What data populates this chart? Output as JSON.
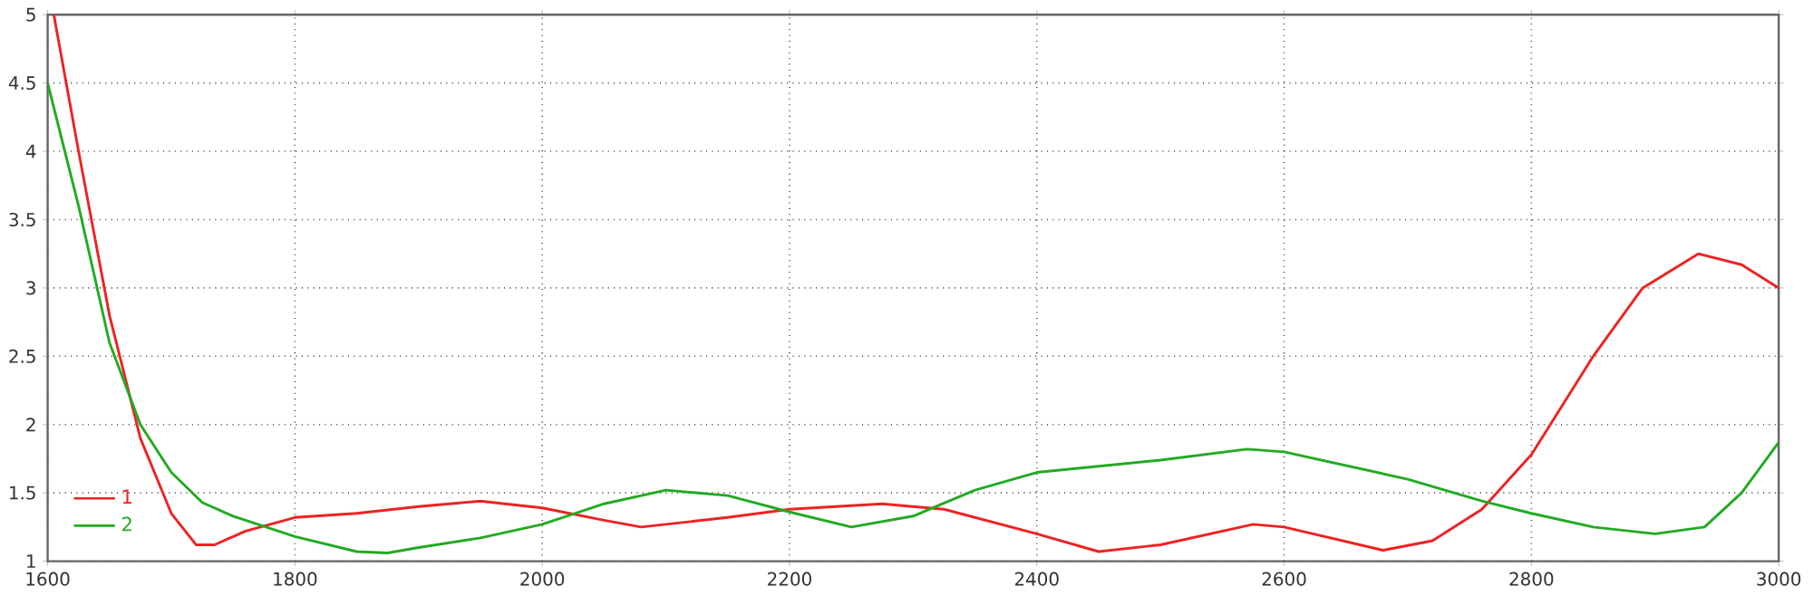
{
  "chart_data": {
    "type": "line",
    "xlim": [
      1600,
      3000
    ],
    "ylim": [
      1,
      5
    ],
    "xticks": [
      1600,
      1800,
      2000,
      2200,
      2400,
      2600,
      2800,
      3000
    ],
    "yticks": [
      1,
      1.5,
      2,
      2.5,
      3,
      3.5,
      4,
      4.5,
      5
    ],
    "grid": true,
    "legend": "bottom left",
    "line_style": "solid",
    "marker": "none",
    "series": [
      {
        "name": "1",
        "color": "#ee2222",
        "x": [
          1605,
          1625,
          1650,
          1675,
          1700,
          1720,
          1735,
          1760,
          1800,
          1850,
          1900,
          1950,
          2000,
          2050,
          2080,
          2150,
          2200,
          2275,
          2325,
          2400,
          2450,
          2500,
          2575,
          2600,
          2680,
          2720,
          2760,
          2800,
          2850,
          2890,
          2935,
          2970,
          3000
        ],
        "values": [
          5.0,
          4.0,
          2.8,
          1.9,
          1.35,
          1.12,
          1.12,
          1.22,
          1.32,
          1.35,
          1.4,
          1.44,
          1.39,
          1.3,
          1.25,
          1.32,
          1.38,
          1.42,
          1.38,
          1.2,
          1.07,
          1.12,
          1.27,
          1.25,
          1.08,
          1.15,
          1.38,
          1.78,
          2.5,
          3.0,
          3.25,
          3.17,
          3.0
        ]
      },
      {
        "name": "2",
        "color": "#22aa22",
        "x": [
          1600,
          1625,
          1650,
          1675,
          1700,
          1725,
          1750,
          1800,
          1850,
          1875,
          1900,
          1950,
          2000,
          2050,
          2100,
          2150,
          2200,
          2250,
          2300,
          2350,
          2400,
          2500,
          2570,
          2600,
          2700,
          2760,
          2800,
          2850,
          2900,
          2940,
          2970,
          3000
        ],
        "values": [
          4.5,
          3.6,
          2.6,
          2.0,
          1.65,
          1.43,
          1.33,
          1.18,
          1.07,
          1.06,
          1.1,
          1.17,
          1.27,
          1.42,
          1.52,
          1.48,
          1.36,
          1.25,
          1.33,
          1.52,
          1.65,
          1.74,
          1.82,
          1.8,
          1.6,
          1.44,
          1.35,
          1.25,
          1.2,
          1.25,
          1.5,
          1.87
        ]
      }
    ]
  }
}
